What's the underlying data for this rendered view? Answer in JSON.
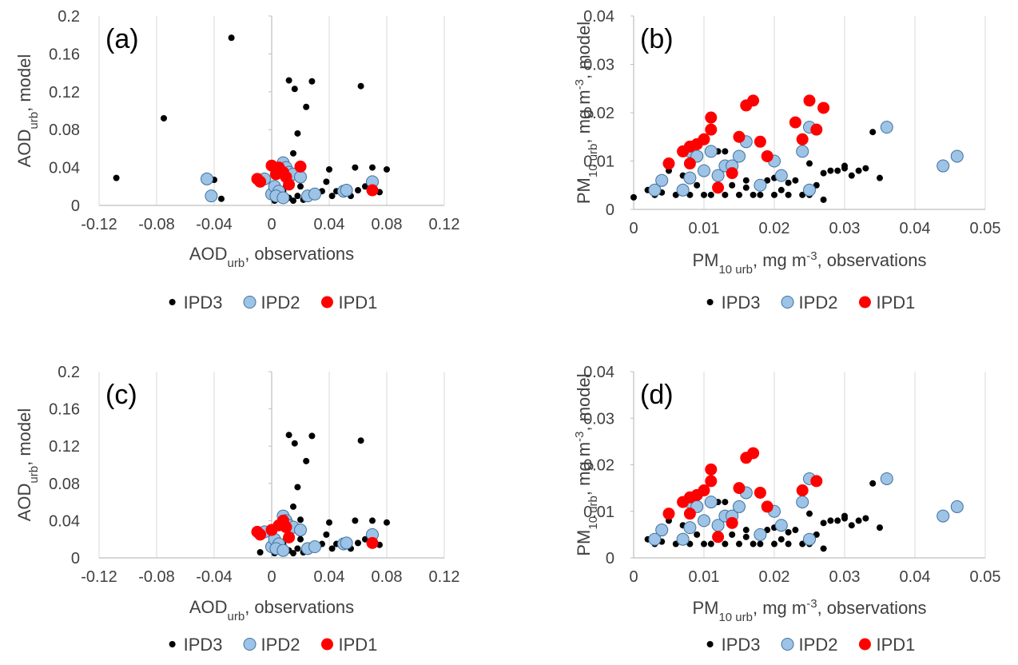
{
  "chart_data": [
    {
      "type": "scatter",
      "panel_label": "(a)",
      "xlabel": [
        {
          "text": "AOD"
        },
        {
          "text": "urb",
          "shift": "sub"
        },
        {
          "text": ", observations"
        }
      ],
      "ylabel": [
        {
          "text": "AOD"
        },
        {
          "text": "urb",
          "shift": "sub"
        },
        {
          "text": ", model"
        }
      ],
      "xlim": [
        -0.12,
        0.12
      ],
      "xticks": [
        -0.12,
        -0.08,
        -0.04,
        0,
        0.04,
        0.08,
        0.12
      ],
      "ylim": [
        0,
        0.2
      ],
      "yticks": [
        0,
        0.04,
        0.08,
        0.12,
        0.16,
        0.2
      ],
      "grid": true,
      "series": [
        {
          "name": "IPD3",
          "color": "#000000",
          "x": [
            -0.108,
            -0.075,
            -0.028,
            -0.04,
            -0.035,
            0.012,
            0.016,
            0.028,
            0.062,
            0.024,
            0.018,
            0.015,
            0.02,
            0.013,
            0.01,
            0.008,
            0.005,
            0.002,
            0.018,
            0.022,
            0.03,
            0.035,
            0.04,
            0.042,
            0.045,
            0.05,
            0.055,
            0.058,
            0.06,
            0.065,
            0.07,
            0.072,
            0.075,
            0.08,
            0.025,
            0.015,
            0.012,
            0.02,
            0.038,
            0.005
          ],
          "y": [
            0.029,
            0.092,
            0.177,
            0.027,
            0.007,
            0.132,
            0.123,
            0.131,
            0.126,
            0.104,
            0.076,
            0.055,
            0.041,
            0.035,
            0.02,
            0.015,
            0.008,
            0.005,
            0.01,
            0.006,
            0.012,
            0.015,
            0.038,
            0.01,
            0.015,
            0.012,
            0.01,
            0.04,
            0.016,
            0.02,
            0.04,
            0.015,
            0.014,
            0.038,
            0.012,
            0.005,
            0.008,
            0.02,
            0.025,
            0.012
          ]
        },
        {
          "name": "IPD2",
          "color": "#9dc3e6",
          "x": [
            -0.045,
            -0.042,
            -0.005,
            0.0,
            0.002,
            0.005,
            0.008,
            0.01,
            0.012,
            0.015,
            0.02,
            0.025,
            0.03,
            0.05,
            0.052,
            0.07,
            0.003,
            0.008
          ],
          "y": [
            0.028,
            0.01,
            0.028,
            0.012,
            0.02,
            0.015,
            0.045,
            0.04,
            0.035,
            0.033,
            0.03,
            0.01,
            0.012,
            0.015,
            0.016,
            0.025,
            0.01,
            0.008
          ]
        },
        {
          "name": "IPD1",
          "color": "#ff0000",
          "x": [
            -0.01,
            -0.008,
            0.0,
            0.005,
            0.008,
            0.01,
            0.012,
            0.02,
            0.003,
            0.07
          ],
          "y": [
            0.028,
            0.025,
            0.042,
            0.04,
            0.035,
            0.03,
            0.022,
            0.041,
            0.033,
            0.016
          ]
        }
      ]
    },
    {
      "type": "scatter",
      "panel_label": "(b)",
      "xlabel": [
        {
          "text": "PM"
        },
        {
          "text": "10 urb",
          "shift": "sub"
        },
        {
          "text": ", mg m"
        },
        {
          "text": "-3",
          "shift": "super"
        },
        {
          "text": ", observations"
        }
      ],
      "ylabel": [
        {
          "text": "PM"
        },
        {
          "text": "10 urb",
          "shift": "sub"
        },
        {
          "text": ", mg m"
        },
        {
          "text": "-3",
          "shift": "super"
        },
        {
          "text": ", model"
        }
      ],
      "xlim": [
        0,
        0.05
      ],
      "xticks": [
        0,
        0.01,
        0.02,
        0.03,
        0.04,
        0.05
      ],
      "ylim": [
        0,
        0.04
      ],
      "yticks": [
        0,
        0.01,
        0.02,
        0.03,
        0.04
      ],
      "grid": true,
      "series": [
        {
          "name": "IPD3",
          "color": "#000000",
          "x": [
            0.0,
            0.002,
            0.003,
            0.005,
            0.006,
            0.008,
            0.009,
            0.01,
            0.011,
            0.012,
            0.013,
            0.014,
            0.015,
            0.016,
            0.017,
            0.018,
            0.019,
            0.02,
            0.021,
            0.022,
            0.023,
            0.024,
            0.025,
            0.026,
            0.027,
            0.028,
            0.029,
            0.03,
            0.031,
            0.032,
            0.034,
            0.035,
            0.004,
            0.007,
            0.012,
            0.014,
            0.018,
            0.02,
            0.022,
            0.025,
            0.027,
            0.03,
            0.033,
            0.016,
            0.013
          ],
          "y": [
            0.0025,
            0.004,
            0.003,
            0.008,
            0.003,
            0.003,
            0.005,
            0.003,
            0.003,
            0.004,
            0.003,
            0.005,
            0.003,
            0.006,
            0.003,
            0.003,
            0.006,
            0.003,
            0.004,
            0.003,
            0.006,
            0.003,
            0.003,
            0.005,
            0.002,
            0.008,
            0.008,
            0.009,
            0.007,
            0.008,
            0.016,
            0.0065,
            0.0035,
            0.007,
            0.012,
            0.009,
            0.0045,
            0.0065,
            0.0055,
            0.0095,
            0.0075,
            0.0085,
            0.0085,
            0.0045,
            0.012
          ]
        },
        {
          "name": "IPD2",
          "color": "#9dc3e6",
          "x": [
            0.003,
            0.004,
            0.007,
            0.008,
            0.009,
            0.01,
            0.011,
            0.012,
            0.013,
            0.014,
            0.015,
            0.016,
            0.018,
            0.02,
            0.021,
            0.024,
            0.025,
            0.025,
            0.036,
            0.044,
            0.046,
            0.008
          ],
          "y": [
            0.004,
            0.006,
            0.004,
            0.012,
            0.011,
            0.008,
            0.012,
            0.007,
            0.009,
            0.009,
            0.011,
            0.014,
            0.005,
            0.01,
            0.007,
            0.012,
            0.017,
            0.004,
            0.017,
            0.009,
            0.011,
            0.0065
          ]
        },
        {
          "name": "IPD1",
          "color": "#ff0000",
          "x": [
            0.005,
            0.007,
            0.008,
            0.009,
            0.01,
            0.011,
            0.011,
            0.012,
            0.014,
            0.015,
            0.016,
            0.017,
            0.018,
            0.019,
            0.023,
            0.024,
            0.025,
            0.026,
            0.027,
            0.008
          ],
          "y": [
            0.0095,
            0.012,
            0.013,
            0.0135,
            0.0145,
            0.019,
            0.0165,
            0.0045,
            0.0075,
            0.015,
            0.0215,
            0.0225,
            0.014,
            0.011,
            0.018,
            0.0145,
            0.0225,
            0.0165,
            0.021,
            0.0095
          ]
        }
      ]
    },
    {
      "type": "scatter",
      "panel_label": "(c)",
      "xlabel": [
        {
          "text": "AOD"
        },
        {
          "text": "urb",
          "shift": "sub"
        },
        {
          "text": ", observations"
        }
      ],
      "ylabel": [
        {
          "text": "AOD"
        },
        {
          "text": "urb",
          "shift": "sub"
        },
        {
          "text": ", model"
        }
      ],
      "xlim": [
        -0.12,
        0.12
      ],
      "xticks": [
        -0.12,
        -0.08,
        -0.04,
        0,
        0.04,
        0.08,
        0.12
      ],
      "ylim": [
        0,
        0.2
      ],
      "yticks": [
        0,
        0.04,
        0.08,
        0.12,
        0.16,
        0.2
      ],
      "grid": true,
      "series": [
        {
          "name": "IPD3",
          "color": "#000000",
          "x": [
            0.012,
            0.016,
            0.028,
            0.062,
            0.024,
            0.018,
            0.015,
            0.02,
            0.013,
            0.01,
            0.008,
            0.005,
            0.002,
            0.018,
            0.022,
            0.03,
            0.035,
            0.04,
            0.042,
            0.045,
            0.05,
            0.055,
            0.058,
            0.06,
            0.065,
            0.07,
            0.072,
            0.075,
            0.08,
            0.025,
            0.015,
            0.012,
            0.02,
            0.038,
            0.005,
            -0.008
          ],
          "y": [
            0.132,
            0.123,
            0.131,
            0.126,
            0.104,
            0.076,
            0.055,
            0.041,
            0.035,
            0.02,
            0.015,
            0.008,
            0.005,
            0.01,
            0.006,
            0.012,
            0.015,
            0.038,
            0.01,
            0.015,
            0.012,
            0.01,
            0.04,
            0.016,
            0.02,
            0.04,
            0.015,
            0.014,
            0.038,
            0.012,
            0.005,
            0.008,
            0.02,
            0.025,
            0.012,
            0.006
          ]
        },
        {
          "name": "IPD2",
          "color": "#9dc3e6",
          "x": [
            -0.005,
            0.0,
            0.002,
            0.005,
            0.008,
            0.01,
            0.012,
            0.015,
            0.02,
            0.025,
            0.03,
            0.05,
            0.052,
            0.07,
            0.003,
            0.008
          ],
          "y": [
            0.028,
            0.012,
            0.02,
            0.015,
            0.045,
            0.04,
            0.035,
            0.033,
            0.03,
            0.01,
            0.012,
            0.015,
            0.016,
            0.025,
            0.01,
            0.008
          ]
        },
        {
          "name": "IPD1",
          "color": "#ff0000",
          "x": [
            -0.01,
            -0.008,
            0.0,
            0.005,
            0.008,
            0.01,
            0.012,
            0.07
          ],
          "y": [
            0.028,
            0.025,
            0.03,
            0.035,
            0.04,
            0.033,
            0.022,
            0.016
          ]
        }
      ]
    },
    {
      "type": "scatter",
      "panel_label": "(d)",
      "xlabel": [
        {
          "text": "PM"
        },
        {
          "text": "10 urb",
          "shift": "sub"
        },
        {
          "text": ", mg m"
        },
        {
          "text": "-3",
          "shift": "super"
        },
        {
          "text": ", observations"
        }
      ],
      "ylabel": [
        {
          "text": "PM"
        },
        {
          "text": "10 urb",
          "shift": "sub"
        },
        {
          "text": ", mg m"
        },
        {
          "text": "-3",
          "shift": "super"
        },
        {
          "text": ", model"
        }
      ],
      "xlim": [
        0,
        0.05
      ],
      "xticks": [
        0,
        0.01,
        0.02,
        0.03,
        0.04,
        0.05
      ],
      "ylim": [
        0,
        0.04
      ],
      "yticks": [
        0,
        0.01,
        0.02,
        0.03,
        0.04
      ],
      "grid": true,
      "series": [
        {
          "name": "IPD3",
          "color": "#000000",
          "x": [
            0.002,
            0.003,
            0.005,
            0.006,
            0.008,
            0.009,
            0.01,
            0.011,
            0.012,
            0.013,
            0.014,
            0.015,
            0.016,
            0.017,
            0.018,
            0.019,
            0.02,
            0.021,
            0.022,
            0.023,
            0.024,
            0.025,
            0.026,
            0.027,
            0.028,
            0.029,
            0.03,
            0.031,
            0.032,
            0.034,
            0.035,
            0.004,
            0.007,
            0.012,
            0.014,
            0.018,
            0.02,
            0.022,
            0.025,
            0.027,
            0.03,
            0.033,
            0.016,
            0.013
          ],
          "y": [
            0.004,
            0.003,
            0.008,
            0.003,
            0.003,
            0.005,
            0.003,
            0.003,
            0.004,
            0.003,
            0.005,
            0.003,
            0.006,
            0.003,
            0.003,
            0.006,
            0.003,
            0.004,
            0.003,
            0.006,
            0.003,
            0.003,
            0.005,
            0.002,
            0.008,
            0.008,
            0.009,
            0.007,
            0.008,
            0.016,
            0.0065,
            0.0035,
            0.007,
            0.012,
            0.009,
            0.0045,
            0.0065,
            0.0055,
            0.0095,
            0.0075,
            0.0085,
            0.0085,
            0.0045,
            0.012
          ]
        },
        {
          "name": "IPD2",
          "color": "#9dc3e6",
          "x": [
            0.003,
            0.004,
            0.007,
            0.008,
            0.009,
            0.01,
            0.011,
            0.012,
            0.013,
            0.014,
            0.015,
            0.016,
            0.018,
            0.02,
            0.021,
            0.024,
            0.025,
            0.025,
            0.036,
            0.044,
            0.046,
            0.008
          ],
          "y": [
            0.004,
            0.006,
            0.004,
            0.012,
            0.011,
            0.008,
            0.012,
            0.007,
            0.009,
            0.009,
            0.011,
            0.014,
            0.005,
            0.01,
            0.007,
            0.012,
            0.017,
            0.004,
            0.017,
            0.009,
            0.011,
            0.0065
          ]
        },
        {
          "name": "IPD1",
          "color": "#ff0000",
          "x": [
            0.005,
            0.007,
            0.008,
            0.009,
            0.01,
            0.011,
            0.011,
            0.012,
            0.014,
            0.015,
            0.016,
            0.017,
            0.018,
            0.019,
            0.024,
            0.026,
            0.008
          ],
          "y": [
            0.0095,
            0.012,
            0.013,
            0.0135,
            0.0145,
            0.019,
            0.0165,
            0.0045,
            0.0075,
            0.015,
            0.0215,
            0.0225,
            0.014,
            0.011,
            0.0145,
            0.0165,
            0.0095
          ]
        }
      ]
    }
  ]
}
